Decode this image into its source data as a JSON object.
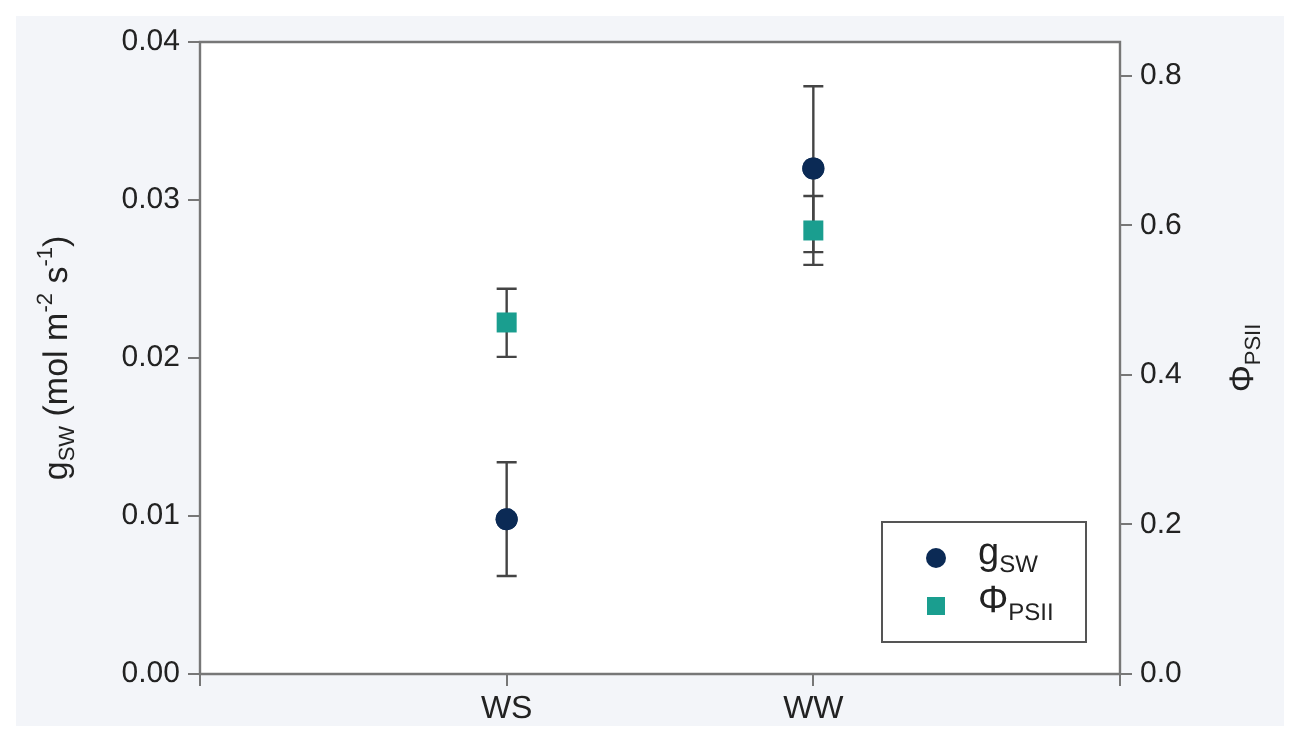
{
  "chart_data": {
    "type": "scatter",
    "categories": [
      null,
      "WS",
      "WW",
      null
    ],
    "ylabel": "g$_{SW}$ (mol m$^{-2}$ s$^{-1}$)",
    "y2label": "Φ$_{PSII}$",
    "ylim": [
      0,
      0.04
    ],
    "yticks": [
      {
        "value": 0,
        "label": "0.00"
      },
      0.01,
      0.02,
      0.03,
      0.04
    ],
    "y2lim": [
      0,
      0.845
    ],
    "y2ticks": [
      {
        "value": 0,
        "label": "0.0"
      },
      0.2,
      0.4,
      0.6,
      0.8
    ],
    "series": [
      {
        "name": "g$_{SW}$",
        "color": "#0b2a55",
        "marker": "circle",
        "values": [
          null,
          0.0098,
          0.032,
          null
        ],
        "errors": [
          null,
          [
            0.0062,
            0.0134
          ],
          [
            0.0267,
            0.0372
          ],
          null
        ]
      },
      {
        "name": "Φ$_{PSII}$",
        "color": "#1a9e8f",
        "marker": "square",
        "axis": "y2",
        "values": [
          null,
          0.47,
          0.593,
          null
        ],
        "errors": [
          null,
          [
            0.424,
            0.515
          ],
          [
            0.547,
            0.639
          ],
          null
        ]
      }
    ],
    "grid": false,
    "legend": "bottom right"
  }
}
